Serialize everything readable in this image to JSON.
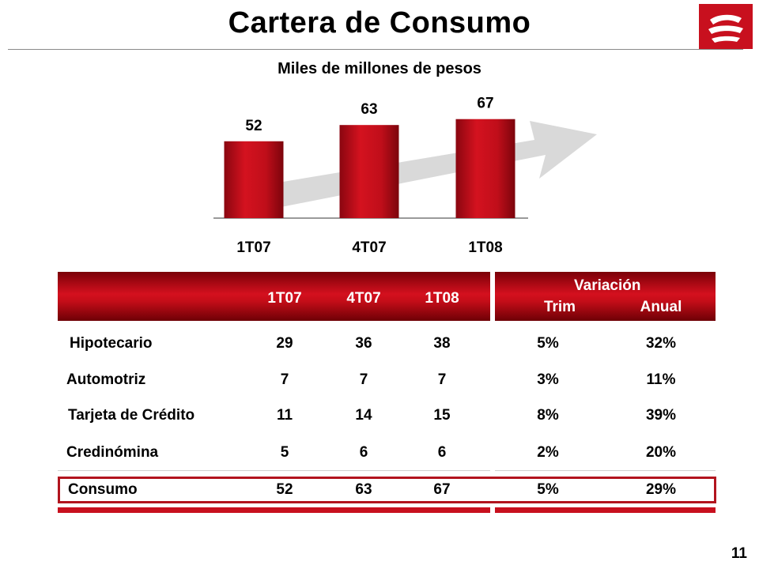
{
  "title": "Cartera de Consumo",
  "page_number": "11",
  "colors": {
    "bar": "#b5101c",
    "accent": "#c8101e",
    "arrow": "#d9d9d9"
  },
  "chart_data": {
    "type": "bar",
    "title": "Miles de millones de pesos",
    "categories": [
      "1T07",
      "4T07",
      "1T08"
    ],
    "values": [
      52,
      63,
      67
    ],
    "xlabel": "",
    "ylabel": "",
    "ylim": [
      0,
      80
    ],
    "grid": false,
    "legend": "none"
  },
  "table": {
    "columns": [
      "1T07",
      "4T07",
      "1T08"
    ],
    "variation_header": "Variación",
    "variation_columns": [
      "Trim",
      "Anual"
    ],
    "rows": [
      {
        "label": "Hipotecario",
        "values": [
          "29",
          "36",
          "38"
        ],
        "trim": "5%",
        "anual": "32%"
      },
      {
        "label": "Automotriz",
        "values": [
          "7",
          "7",
          "7"
        ],
        "trim": "3%",
        "anual": "11%"
      },
      {
        "label": "Tarjeta de Crédito",
        "values": [
          "11",
          "14",
          "15"
        ],
        "trim": "8%",
        "anual": "39%"
      },
      {
        "label": "Credinómina",
        "values": [
          "5",
          "6",
          "6"
        ],
        "trim": "2%",
        "anual": "20%"
      }
    ],
    "total": {
      "label": "Consumo",
      "values": [
        "52",
        "63",
        "67"
      ],
      "trim": "5%",
      "anual": "29%"
    }
  }
}
